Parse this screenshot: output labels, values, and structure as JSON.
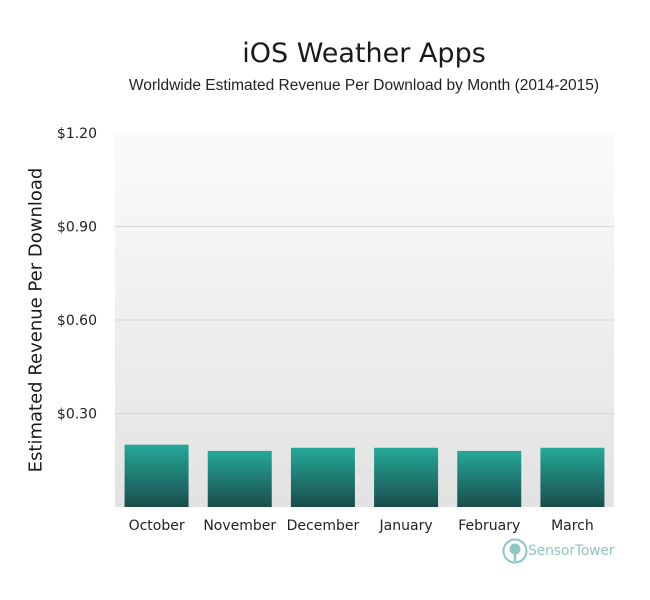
{
  "chart_data": {
    "type": "bar",
    "title": "iOS Weather Apps",
    "subtitle": "Worldwide Estimated Revenue Per Download by Month (2014-2015)",
    "xlabel": "",
    "ylabel": "Estimated Revenue Per Download",
    "categories": [
      "October",
      "November",
      "December",
      "January",
      "February",
      "March"
    ],
    "values": [
      0.2,
      0.18,
      0.19,
      0.19,
      0.18,
      0.19
    ],
    "ylim": [
      0,
      1.2
    ],
    "yticks": [
      0.3,
      0.6,
      0.9,
      1.2
    ],
    "ytick_labels": [
      "$0.30",
      "$0.60",
      "$0.90",
      "$1.20"
    ],
    "grid": true,
    "legend": "none"
  },
  "colors": {
    "bar_top": "#25a898",
    "bar_bottom": "#1a4d4c",
    "plot_bg_top": "#fbfbfb",
    "plot_bg_bottom": "#e2e2e2",
    "grid": "#d6d6d6"
  },
  "watermark": {
    "brand": "SensorTower",
    "icon": "sensor-tower-logo-icon"
  }
}
